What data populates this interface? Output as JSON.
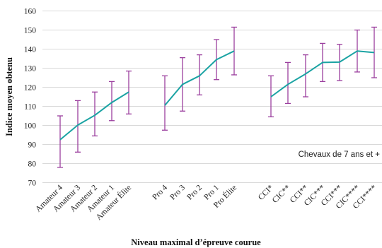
{
  "chart_data": {
    "type": "line",
    "title": "",
    "xlabel": "Niveau maximal d’épreuve courue",
    "ylabel": "Indice moyen obtenu",
    "ylim": [
      70,
      160
    ],
    "yticks": [
      70,
      80,
      90,
      100,
      110,
      120,
      130,
      140,
      150,
      160
    ],
    "grid": "horizontal",
    "annotation": "Chevaux de 7 ans et +",
    "colors": {
      "line": "#1aa3a3",
      "error_bars": "#9b3f9e",
      "grid": "#d9d9d9",
      "axis_text": "#222222"
    },
    "groups": [
      {
        "categories": [
          "Amateur 4",
          "Amateur 3",
          "Amateur 2",
          "Amateur 1",
          "Amateur Élite"
        ],
        "values": [
          92.5,
          100.2,
          105.3,
          112.0,
          117.5
        ],
        "lower": [
          78.0,
          86.0,
          94.5,
          102.5,
          106.0
        ],
        "upper": [
          105.0,
          113.0,
          117.5,
          123.0,
          128.5
        ]
      },
      {
        "categories": [
          "Pro 4",
          "Pro 3",
          "Pro 2",
          "Pro 1",
          "Pro Élite"
        ],
        "values": [
          110.5,
          121.5,
          126.0,
          134.5,
          139.0
        ],
        "lower": [
          97.5,
          107.5,
          116.0,
          124.0,
          126.5
        ],
        "upper": [
          126.0,
          135.5,
          137.0,
          145.0,
          151.5
        ]
      },
      {
        "categories": [
          "CCI*",
          "CIC**",
          "CCI**",
          "CIC***",
          "CCI***",
          "CIC****",
          "CCI****"
        ],
        "values": [
          115.0,
          121.5,
          127.0,
          133.0,
          133.2,
          139.0,
          138.2
        ],
        "lower": [
          104.5,
          111.5,
          115.0,
          123.0,
          123.5,
          128.0,
          125.0
        ],
        "upper": [
          126.0,
          133.0,
          137.0,
          143.0,
          142.5,
          150.0,
          151.5
        ]
      }
    ]
  }
}
